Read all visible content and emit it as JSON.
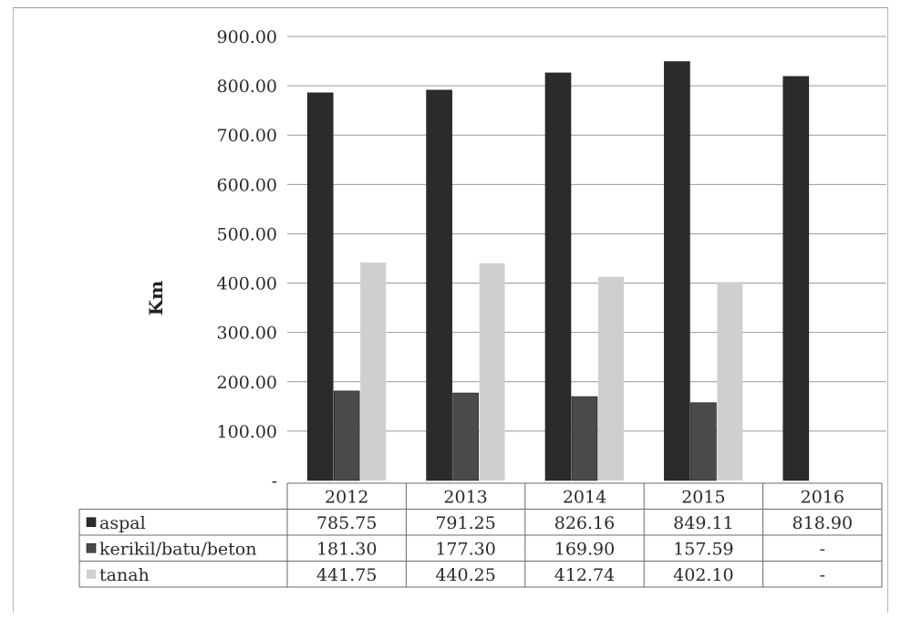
{
  "chart_data": {
    "type": "bar",
    "ylabel": "Km",
    "ylim": [
      0,
      900
    ],
    "y_ticks": [
      "-",
      "100.00",
      "200.00",
      "300.00",
      "400.00",
      "500.00",
      "600.00",
      "700.00",
      "800.00",
      "900.00"
    ],
    "grid": true,
    "categories": [
      "2012",
      "2013",
      "2014",
      "2015",
      "2016"
    ],
    "series": [
      {
        "name": "aspal",
        "color": "#2b2b2b",
        "values": [
          785.75,
          791.25,
          826.16,
          849.11,
          818.9
        ],
        "table_values": [
          "785.75",
          "791.25",
          "826.16",
          "849.11",
          "818.90"
        ]
      },
      {
        "name": "kerikil/batu/beton",
        "color": "#4a4a4a",
        "values": [
          181.3,
          177.3,
          169.9,
          157.59,
          null
        ],
        "table_values": [
          "181.30",
          "177.30",
          "169.90",
          "157.59",
          "-"
        ]
      },
      {
        "name": "tanah",
        "color": "#cfcfcf",
        "values": [
          441.75,
          440.25,
          412.74,
          402.1,
          null
        ],
        "table_values": [
          "441.75",
          "440.25",
          "412.74",
          "402.10",
          "-"
        ]
      }
    ],
    "legend_placement": "data-table-left"
  }
}
